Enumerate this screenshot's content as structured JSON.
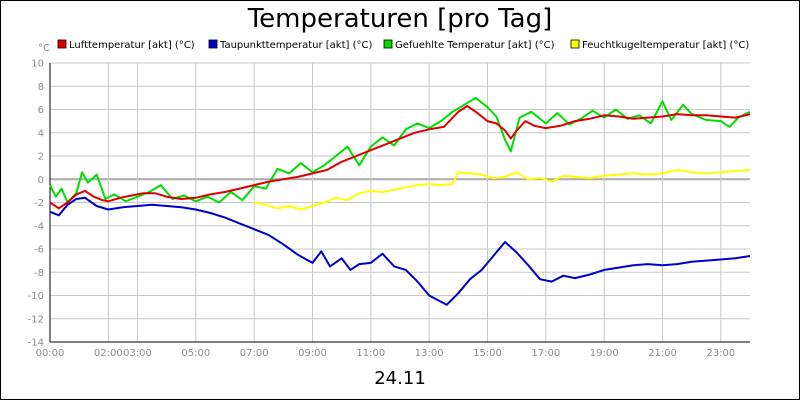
{
  "chart_data": {
    "type": "line",
    "title": "Temperaturen [pro Tag]",
    "date_label": "24.11",
    "yunit": "°C",
    "ylim": [
      -14,
      10
    ],
    "yticks": [
      10,
      8,
      6,
      4,
      2,
      0,
      -2,
      -4,
      -6,
      -8,
      -10,
      -12,
      -14
    ],
    "xlim": [
      0,
      24
    ],
    "xticks": [
      {
        "label": "00:00",
        "pos": 0
      },
      {
        "label": "02:00",
        "pos": 2
      },
      {
        "label": "03:00",
        "pos": 3
      },
      {
        "label": "05:00",
        "pos": 5
      },
      {
        "label": "07:00",
        "pos": 7
      },
      {
        "label": "09:00",
        "pos": 9
      },
      {
        "label": "11:00",
        "pos": 11
      },
      {
        "label": "13:00",
        "pos": 13
      },
      {
        "label": "15:00",
        "pos": 15
      },
      {
        "label": "17:00",
        "pos": 17
      },
      {
        "label": "19:00",
        "pos": 19
      },
      {
        "label": "21:00",
        "pos": 21
      },
      {
        "label": "23:00",
        "pos": 23
      }
    ],
    "grid": true,
    "legend_position": "top",
    "series": [
      {
        "name": "Lufttemperatur [akt] (°C)",
        "color": "#dd0000",
        "points": [
          [
            0,
            -2.0
          ],
          [
            0.3,
            -2.5
          ],
          [
            0.6,
            -2.0
          ],
          [
            0.9,
            -1.3
          ],
          [
            1.2,
            -1.0
          ],
          [
            1.5,
            -1.5
          ],
          [
            1.8,
            -1.8
          ],
          [
            2.0,
            -1.9
          ],
          [
            2.4,
            -1.6
          ],
          [
            2.8,
            -1.4
          ],
          [
            3.2,
            -1.2
          ],
          [
            3.6,
            -1.2
          ],
          [
            4.0,
            -1.5
          ],
          [
            4.5,
            -1.7
          ],
          [
            5.0,
            -1.6
          ],
          [
            5.5,
            -1.3
          ],
          [
            6.0,
            -1.1
          ],
          [
            6.5,
            -0.8
          ],
          [
            7.0,
            -0.5
          ],
          [
            7.5,
            -0.2
          ],
          [
            8.0,
            0.0
          ],
          [
            8.5,
            0.2
          ],
          [
            9.0,
            0.5
          ],
          [
            9.5,
            0.8
          ],
          [
            10.0,
            1.5
          ],
          [
            10.5,
            2.0
          ],
          [
            11.0,
            2.5
          ],
          [
            11.5,
            3.0
          ],
          [
            12.0,
            3.5
          ],
          [
            12.5,
            4.0
          ],
          [
            13.0,
            4.3
          ],
          [
            13.5,
            4.5
          ],
          [
            14.0,
            5.8
          ],
          [
            14.3,
            6.3
          ],
          [
            14.6,
            5.8
          ],
          [
            15.0,
            5.0
          ],
          [
            15.3,
            4.8
          ],
          [
            15.6,
            4.2
          ],
          [
            15.8,
            3.5
          ],
          [
            16.0,
            4.2
          ],
          [
            16.3,
            5.0
          ],
          [
            16.6,
            4.6
          ],
          [
            17.0,
            4.4
          ],
          [
            17.5,
            4.6
          ],
          [
            18.0,
            5.0
          ],
          [
            18.5,
            5.2
          ],
          [
            19.0,
            5.5
          ],
          [
            19.5,
            5.4
          ],
          [
            20.0,
            5.2
          ],
          [
            20.5,
            5.3
          ],
          [
            21.0,
            5.4
          ],
          [
            21.5,
            5.6
          ],
          [
            22.0,
            5.5
          ],
          [
            22.5,
            5.5
          ],
          [
            23.0,
            5.4
          ],
          [
            23.5,
            5.3
          ],
          [
            24.0,
            5.6
          ]
        ]
      },
      {
        "name": "Taupunkttemperatur [akt] (°C)",
        "color": "#0000cc",
        "points": [
          [
            0,
            -2.8
          ],
          [
            0.3,
            -3.1
          ],
          [
            0.6,
            -2.2
          ],
          [
            0.9,
            -1.7
          ],
          [
            1.2,
            -1.6
          ],
          [
            1.6,
            -2.3
          ],
          [
            2.0,
            -2.6
          ],
          [
            2.5,
            -2.4
          ],
          [
            3.0,
            -2.3
          ],
          [
            3.5,
            -2.2
          ],
          [
            4.0,
            -2.3
          ],
          [
            4.5,
            -2.4
          ],
          [
            5.0,
            -2.6
          ],
          [
            5.5,
            -2.9
          ],
          [
            6.0,
            -3.3
          ],
          [
            6.5,
            -3.8
          ],
          [
            7.0,
            -4.3
          ],
          [
            7.5,
            -4.8
          ],
          [
            8.0,
            -5.6
          ],
          [
            8.5,
            -6.5
          ],
          [
            9.0,
            -7.2
          ],
          [
            9.3,
            -6.2
          ],
          [
            9.6,
            -7.5
          ],
          [
            10.0,
            -6.8
          ],
          [
            10.3,
            -7.8
          ],
          [
            10.6,
            -7.3
          ],
          [
            11.0,
            -7.2
          ],
          [
            11.4,
            -6.4
          ],
          [
            11.8,
            -7.5
          ],
          [
            12.2,
            -7.8
          ],
          [
            12.6,
            -8.8
          ],
          [
            13.0,
            -10.0
          ],
          [
            13.3,
            -10.4
          ],
          [
            13.6,
            -10.8
          ],
          [
            14.0,
            -9.8
          ],
          [
            14.4,
            -8.6
          ],
          [
            14.8,
            -7.8
          ],
          [
            15.2,
            -6.6
          ],
          [
            15.6,
            -5.4
          ],
          [
            16.0,
            -6.3
          ],
          [
            16.4,
            -7.4
          ],
          [
            16.8,
            -8.6
          ],
          [
            17.2,
            -8.8
          ],
          [
            17.6,
            -8.3
          ],
          [
            18.0,
            -8.5
          ],
          [
            18.5,
            -8.2
          ],
          [
            19.0,
            -7.8
          ],
          [
            19.5,
            -7.6
          ],
          [
            20.0,
            -7.4
          ],
          [
            20.5,
            -7.3
          ],
          [
            21.0,
            -7.4
          ],
          [
            21.5,
            -7.3
          ],
          [
            22.0,
            -7.1
          ],
          [
            22.5,
            -7.0
          ],
          [
            23.0,
            -6.9
          ],
          [
            23.5,
            -6.8
          ],
          [
            24.0,
            -6.6
          ]
        ]
      },
      {
        "name": "Gefuehlte Temperatur [akt] (°C)",
        "color": "#00dd00",
        "points": [
          [
            0,
            -0.5
          ],
          [
            0.2,
            -1.5
          ],
          [
            0.4,
            -0.8
          ],
          [
            0.6,
            -2.0
          ],
          [
            0.9,
            -1.2
          ],
          [
            1.1,
            0.6
          ],
          [
            1.3,
            -0.3
          ],
          [
            1.6,
            0.4
          ],
          [
            1.9,
            -1.7
          ],
          [
            2.2,
            -1.3
          ],
          [
            2.6,
            -1.9
          ],
          [
            3.0,
            -1.5
          ],
          [
            3.4,
            -1.1
          ],
          [
            3.8,
            -0.5
          ],
          [
            4.2,
            -1.7
          ],
          [
            4.6,
            -1.4
          ],
          [
            5.0,
            -1.9
          ],
          [
            5.4,
            -1.5
          ],
          [
            5.8,
            -2.0
          ],
          [
            6.2,
            -1.1
          ],
          [
            6.6,
            -1.8
          ],
          [
            7.0,
            -0.6
          ],
          [
            7.4,
            -0.8
          ],
          [
            7.8,
            0.9
          ],
          [
            8.2,
            0.5
          ],
          [
            8.6,
            1.4
          ],
          [
            9.0,
            0.6
          ],
          [
            9.4,
            1.2
          ],
          [
            9.8,
            2.0
          ],
          [
            10.2,
            2.8
          ],
          [
            10.6,
            1.2
          ],
          [
            11.0,
            2.8
          ],
          [
            11.4,
            3.6
          ],
          [
            11.8,
            2.9
          ],
          [
            12.2,
            4.3
          ],
          [
            12.6,
            4.8
          ],
          [
            13.0,
            4.4
          ],
          [
            13.4,
            5.0
          ],
          [
            13.8,
            5.8
          ],
          [
            14.2,
            6.4
          ],
          [
            14.6,
            7.0
          ],
          [
            15.0,
            6.2
          ],
          [
            15.3,
            5.4
          ],
          [
            15.6,
            3.4
          ],
          [
            15.8,
            2.4
          ],
          [
            16.1,
            5.3
          ],
          [
            16.5,
            5.8
          ],
          [
            17.0,
            4.8
          ],
          [
            17.4,
            5.7
          ],
          [
            17.8,
            4.7
          ],
          [
            18.2,
            5.2
          ],
          [
            18.6,
            5.9
          ],
          [
            19.0,
            5.3
          ],
          [
            19.4,
            6.0
          ],
          [
            19.8,
            5.2
          ],
          [
            20.2,
            5.5
          ],
          [
            20.6,
            4.8
          ],
          [
            21.0,
            6.7
          ],
          [
            21.3,
            5.1
          ],
          [
            21.7,
            6.4
          ],
          [
            22.0,
            5.6
          ],
          [
            22.5,
            5.1
          ],
          [
            23.0,
            5.0
          ],
          [
            23.3,
            4.5
          ],
          [
            23.6,
            5.3
          ],
          [
            24.0,
            5.8
          ]
        ]
      },
      {
        "name": "Feuchtkugeltemperatur [akt] (°C)",
        "color": "#ffff00",
        "points": [
          [
            7.0,
            -2.0
          ],
          [
            7.4,
            -2.2
          ],
          [
            7.8,
            -2.5
          ],
          [
            8.2,
            -2.3
          ],
          [
            8.6,
            -2.6
          ],
          [
            9.0,
            -2.3
          ],
          [
            9.4,
            -2.0
          ],
          [
            9.8,
            -1.6
          ],
          [
            10.2,
            -1.8
          ],
          [
            10.6,
            -1.2
          ],
          [
            11.0,
            -1.0
          ],
          [
            11.4,
            -1.1
          ],
          [
            11.8,
            -0.9
          ],
          [
            12.2,
            -0.7
          ],
          [
            12.6,
            -0.5
          ],
          [
            13.0,
            -0.4
          ],
          [
            13.4,
            -0.5
          ],
          [
            13.8,
            -0.4
          ],
          [
            14.0,
            0.6
          ],
          [
            14.4,
            0.5
          ],
          [
            14.8,
            0.4
          ],
          [
            15.2,
            0.1
          ],
          [
            15.6,
            0.2
          ],
          [
            16.0,
            0.6
          ],
          [
            16.4,
            0.0
          ],
          [
            16.8,
            0.1
          ],
          [
            17.2,
            -0.2
          ],
          [
            17.6,
            0.3
          ],
          [
            18.0,
            0.2
          ],
          [
            18.5,
            0.1
          ],
          [
            19.0,
            0.3
          ],
          [
            19.5,
            0.4
          ],
          [
            20.0,
            0.5
          ],
          [
            20.5,
            0.4
          ],
          [
            21.0,
            0.5
          ],
          [
            21.5,
            0.8
          ],
          [
            22.0,
            0.6
          ],
          [
            22.5,
            0.5
          ],
          [
            23.0,
            0.6
          ],
          [
            23.5,
            0.7
          ],
          [
            24.0,
            0.8
          ]
        ]
      }
    ]
  }
}
